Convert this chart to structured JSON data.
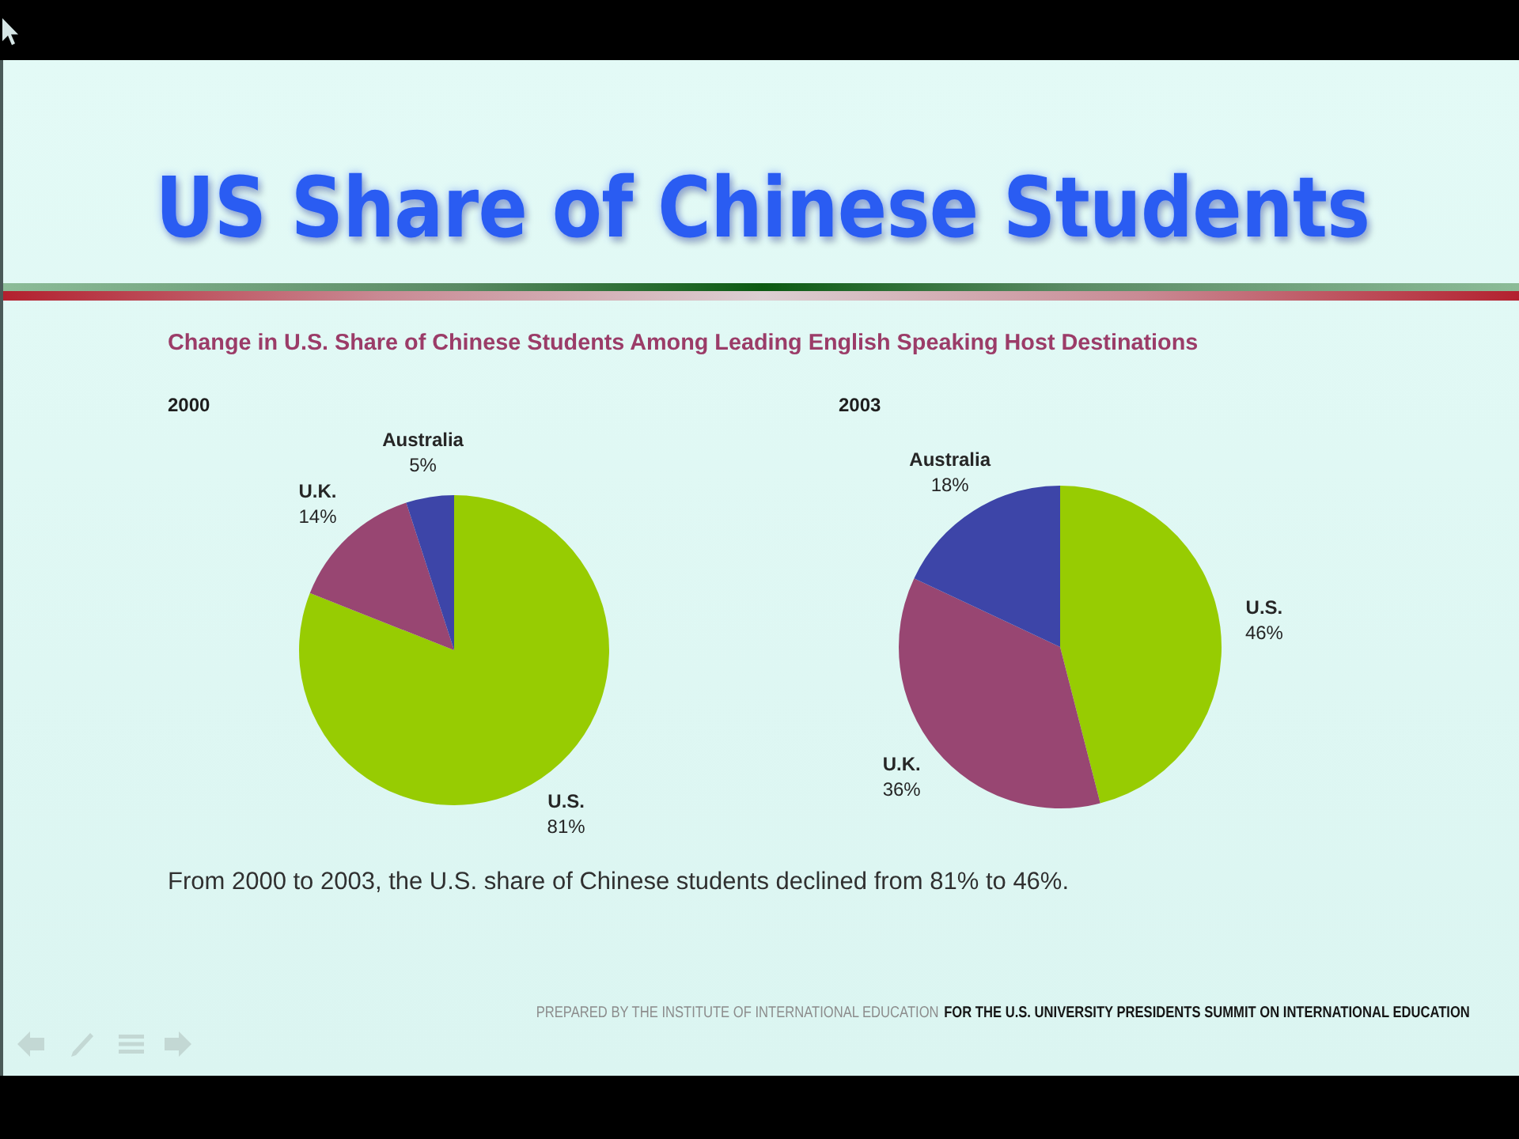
{
  "chart_data": [
    {
      "type": "other",
      "title": "US Share of Chinese Students",
      "subtitle": "Change in U.S. Share of Chinese Students Among Leading English Speaking Host Destinations"
    },
    {
      "type": "pie",
      "title": "2000",
      "categories": [
        "U.S.",
        "U.K.",
        "Australia"
      ],
      "values": [
        81,
        14,
        5
      ],
      "colors": [
        "#97cc02",
        "#984672",
        "#3d45a8"
      ],
      "value_labels": [
        "81%",
        "14%",
        "5%"
      ]
    },
    {
      "type": "pie",
      "title": "2003",
      "categories": [
        "U.S.",
        "U.K.",
        "Australia"
      ],
      "values": [
        46,
        36,
        18
      ],
      "colors": [
        "#97cc02",
        "#984672",
        "#3d45a8"
      ],
      "value_labels": [
        "46%",
        "36%",
        "18%"
      ]
    },
    {
      "type": "other",
      "annotations": [
        "From 2000 to 2003, the U.S. share of Chinese students declined from 81% to 46%.",
        "PREPARED BY THE INSTITUTE OF INTERNATIONAL EDUCATION",
        "FOR THE U.S. UNIVERSITY PRESIDENTS SUMMIT ON INTERNATIONAL EDUCATION"
      ]
    }
  ]
}
